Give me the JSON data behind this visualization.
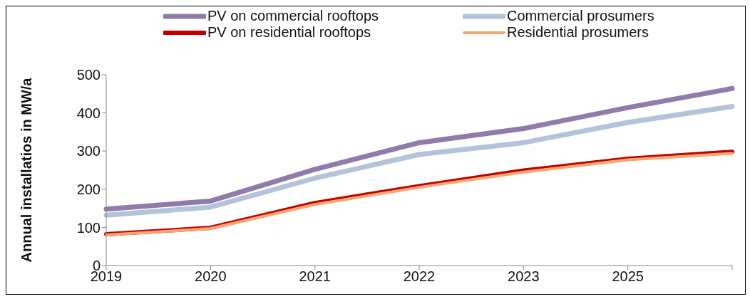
{
  "chart_data": {
    "type": "line",
    "ylabel": "Annual installatios in MW/a",
    "categories": [
      "2019",
      "2020",
      "2021",
      "2022",
      "2023",
      "2025",
      null
    ],
    "series": [
      {
        "name": "PV on commercial rooftops",
        "color": "#8f7caa",
        "values": [
          148,
          169,
          252,
          322,
          359,
          414,
          464
        ]
      },
      {
        "name": "Commercial prosumers",
        "color": "#b3c3da",
        "values": [
          132,
          153,
          229,
          291,
          322,
          375,
          417
        ]
      },
      {
        "name": "PV on residential rooftops",
        "color": "#c00000",
        "values": [
          82,
          99,
          164,
          208,
          249,
          280,
          298
        ]
      },
      {
        "name": "Residential prosumers",
        "color": "#f5a673",
        "values": [
          80,
          97,
          160,
          205,
          245,
          277,
          294
        ]
      }
    ],
    "ylim": [
      0,
      500
    ],
    "yticks": [
      0,
      100,
      200,
      300,
      400,
      500
    ],
    "grid": false,
    "legend": "top",
    "marker": "none",
    "line_style": "solid"
  }
}
